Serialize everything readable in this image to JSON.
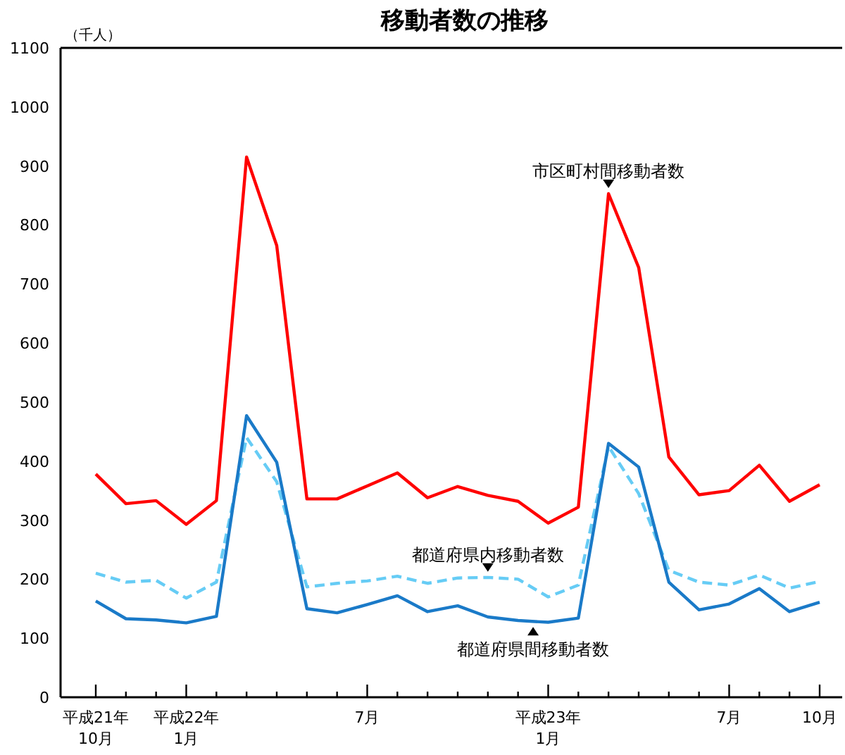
{
  "chart_data": {
    "type": "line",
    "title": "移動者数の推移",
    "ylabel": "（千人）",
    "categories": [
      "平成21年\n10月",
      null,
      null,
      "平成22年\n1月",
      null,
      null,
      null,
      null,
      null,
      "7月",
      null,
      null,
      null,
      null,
      null,
      "平成23年\n1月",
      null,
      null,
      null,
      null,
      null,
      "7月",
      null,
      null,
      "10月"
    ],
    "ylim": [
      0,
      1100
    ],
    "yticks": [
      0,
      100,
      200,
      300,
      400,
      500,
      600,
      700,
      800,
      900,
      1000,
      1100
    ],
    "grid": false,
    "legend": false,
    "marker": "none",
    "series": [
      {
        "name": "市区町村間移動者数",
        "color": "#ff0000",
        "line_style": "solid",
        "values": [
          378,
          328,
          333,
          293,
          333,
          915,
          765,
          336,
          336,
          358,
          380,
          338,
          357,
          342,
          332,
          295,
          322,
          853,
          728,
          407,
          343,
          350,
          393,
          332,
          360
        ]
      },
      {
        "name": "都道府県内移動者数",
        "color": "#66ccf5",
        "line_style": "dashed",
        "values": [
          210,
          195,
          198,
          168,
          195,
          440,
          365,
          187,
          193,
          197,
          205,
          193,
          202,
          203,
          200,
          170,
          190,
          425,
          345,
          215,
          195,
          190,
          207,
          185,
          196
        ]
      },
      {
        "name": "都道府県間移動者数",
        "color": "#1a7ac8",
        "line_style": "solid",
        "values": [
          163,
          133,
          131,
          126,
          137,
          477,
          398,
          150,
          143,
          157,
          172,
          145,
          155,
          136,
          130,
          127,
          134,
          430,
          390,
          195,
          148,
          158,
          184,
          145,
          161
        ]
      }
    ]
  }
}
